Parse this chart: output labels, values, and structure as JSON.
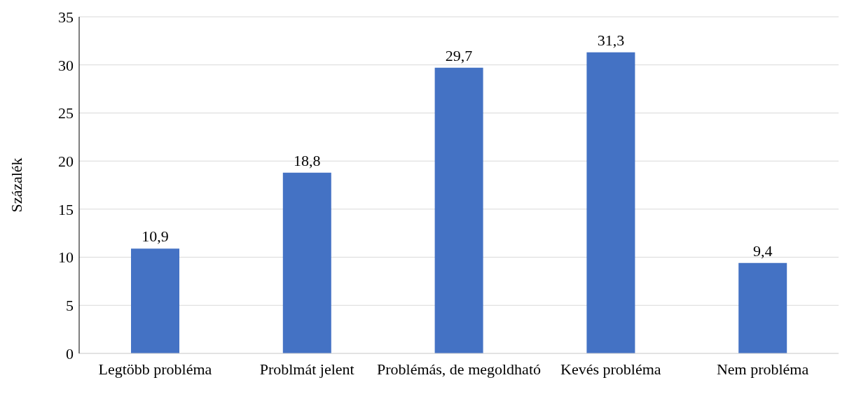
{
  "chart_data": {
    "type": "bar",
    "ylabel": "Százalék",
    "categories": [
      "Legtöbb probléma",
      "Problmát jelent",
      "Problémás, de megoldható",
      "Kevés probléma",
      "Nem probléma"
    ],
    "values": [
      10.9,
      18.8,
      29.7,
      31.3,
      9.4
    ],
    "value_labels": [
      "10,9",
      "18,8",
      "29,7",
      "31,3",
      "9,4"
    ],
    "color": "#4472c4",
    "ylim": [
      0,
      35
    ],
    "yticks": [
      0,
      5,
      10,
      15,
      20,
      25,
      30,
      35
    ],
    "grid": "y"
  }
}
